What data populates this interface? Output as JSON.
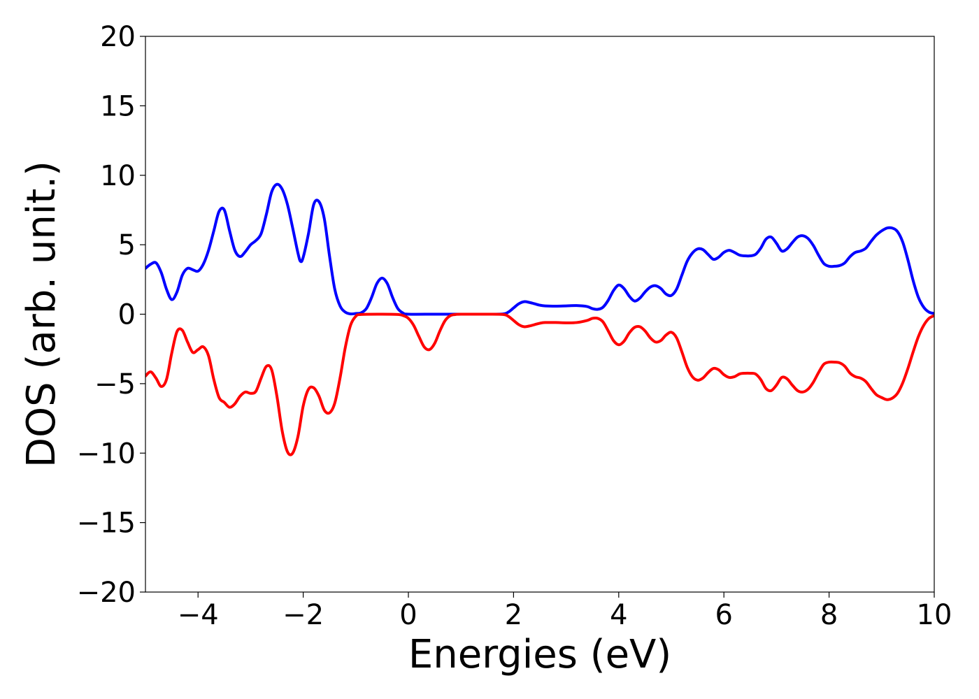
{
  "chart_data": {
    "type": "line",
    "title": "",
    "xlabel": "Energies (eV)",
    "ylabel": "DOS (arb. unit.)",
    "xlim": [
      -5,
      10
    ],
    "ylim": [
      -20,
      20
    ],
    "grid": false,
    "x_ticks": [
      {
        "value": -4,
        "label": "−4"
      },
      {
        "value": -2,
        "label": "−2"
      },
      {
        "value": 0,
        "label": "0"
      },
      {
        "value": 2,
        "label": "2"
      },
      {
        "value": 4,
        "label": "4"
      },
      {
        "value": 6,
        "label": "6"
      },
      {
        "value": 8,
        "label": "8"
      },
      {
        "value": 10,
        "label": "10"
      }
    ],
    "y_ticks": [
      {
        "value": -20,
        "label": "−20"
      },
      {
        "value": -15,
        "label": "−15"
      },
      {
        "value": -10,
        "label": "−10"
      },
      {
        "value": -5,
        "label": "−5"
      },
      {
        "value": 0,
        "label": "0"
      },
      {
        "value": 5,
        "label": "5"
      },
      {
        "value": 10,
        "label": "10"
      },
      {
        "value": 15,
        "label": "15"
      },
      {
        "value": 20,
        "label": "20"
      }
    ],
    "series": [
      {
        "color": "#0000ff",
        "points": [
          [
            -5.0,
            3.3
          ],
          [
            -4.9,
            3.6
          ],
          [
            -4.8,
            3.7
          ],
          [
            -4.7,
            3.0
          ],
          [
            -4.6,
            1.8
          ],
          [
            -4.5,
            1.05
          ],
          [
            -4.4,
            1.6
          ],
          [
            -4.3,
            2.8
          ],
          [
            -4.2,
            3.3
          ],
          [
            -4.1,
            3.2
          ],
          [
            -4.0,
            3.1
          ],
          [
            -3.9,
            3.6
          ],
          [
            -3.8,
            4.6
          ],
          [
            -3.7,
            6.0
          ],
          [
            -3.6,
            7.4
          ],
          [
            -3.5,
            7.5
          ],
          [
            -3.4,
            6.0
          ],
          [
            -3.3,
            4.6
          ],
          [
            -3.2,
            4.15
          ],
          [
            -3.1,
            4.5
          ],
          [
            -3.0,
            5.0
          ],
          [
            -2.9,
            5.3
          ],
          [
            -2.8,
            5.8
          ],
          [
            -2.7,
            7.2
          ],
          [
            -2.6,
            8.8
          ],
          [
            -2.5,
            9.35
          ],
          [
            -2.4,
            9.0
          ],
          [
            -2.3,
            7.9
          ],
          [
            -2.2,
            6.2
          ],
          [
            -2.1,
            4.4
          ],
          [
            -2.05,
            3.8
          ],
          [
            -2.0,
            4.1
          ],
          [
            -1.9,
            5.8
          ],
          [
            -1.8,
            7.9
          ],
          [
            -1.7,
            8.1
          ],
          [
            -1.6,
            6.9
          ],
          [
            -1.5,
            4.2
          ],
          [
            -1.4,
            1.8
          ],
          [
            -1.3,
            0.6
          ],
          [
            -1.2,
            0.15
          ],
          [
            -1.1,
            0.02
          ],
          [
            -1.0,
            0.05
          ],
          [
            -0.9,
            0.1
          ],
          [
            -0.8,
            0.4
          ],
          [
            -0.7,
            1.2
          ],
          [
            -0.6,
            2.2
          ],
          [
            -0.5,
            2.6
          ],
          [
            -0.4,
            2.2
          ],
          [
            -0.3,
            1.2
          ],
          [
            -0.2,
            0.4
          ],
          [
            -0.1,
            0.08
          ],
          [
            0.0,
            0.0
          ],
          [
            0.5,
            0.0
          ],
          [
            1.0,
            0.0
          ],
          [
            1.5,
            0.0
          ],
          [
            1.8,
            0.02
          ],
          [
            1.9,
            0.15
          ],
          [
            2.0,
            0.45
          ],
          [
            2.1,
            0.75
          ],
          [
            2.2,
            0.9
          ],
          [
            2.3,
            0.85
          ],
          [
            2.4,
            0.75
          ],
          [
            2.5,
            0.65
          ],
          [
            2.6,
            0.6
          ],
          [
            2.8,
            0.58
          ],
          [
            3.0,
            0.6
          ],
          [
            3.2,
            0.62
          ],
          [
            3.4,
            0.55
          ],
          [
            3.5,
            0.4
          ],
          [
            3.6,
            0.35
          ],
          [
            3.7,
            0.5
          ],
          [
            3.8,
            1.0
          ],
          [
            3.9,
            1.7
          ],
          [
            4.0,
            2.1
          ],
          [
            4.1,
            1.85
          ],
          [
            4.2,
            1.3
          ],
          [
            4.3,
            0.95
          ],
          [
            4.4,
            1.15
          ],
          [
            4.5,
            1.6
          ],
          [
            4.6,
            1.95
          ],
          [
            4.7,
            2.05
          ],
          [
            4.8,
            1.85
          ],
          [
            4.9,
            1.45
          ],
          [
            5.0,
            1.35
          ],
          [
            5.1,
            1.8
          ],
          [
            5.2,
            2.8
          ],
          [
            5.3,
            3.8
          ],
          [
            5.4,
            4.4
          ],
          [
            5.5,
            4.7
          ],
          [
            5.6,
            4.65
          ],
          [
            5.7,
            4.3
          ],
          [
            5.8,
            3.95
          ],
          [
            5.9,
            4.1
          ],
          [
            6.0,
            4.45
          ],
          [
            6.1,
            4.6
          ],
          [
            6.2,
            4.45
          ],
          [
            6.3,
            4.25
          ],
          [
            6.4,
            4.2
          ],
          [
            6.5,
            4.2
          ],
          [
            6.6,
            4.3
          ],
          [
            6.7,
            4.75
          ],
          [
            6.8,
            5.4
          ],
          [
            6.9,
            5.55
          ],
          [
            7.0,
            5.1
          ],
          [
            7.1,
            4.55
          ],
          [
            7.2,
            4.7
          ],
          [
            7.3,
            5.15
          ],
          [
            7.4,
            5.55
          ],
          [
            7.5,
            5.65
          ],
          [
            7.6,
            5.45
          ],
          [
            7.7,
            4.95
          ],
          [
            7.8,
            4.25
          ],
          [
            7.9,
            3.65
          ],
          [
            8.0,
            3.45
          ],
          [
            8.1,
            3.45
          ],
          [
            8.2,
            3.5
          ],
          [
            8.3,
            3.7
          ],
          [
            8.4,
            4.15
          ],
          [
            8.5,
            4.45
          ],
          [
            8.6,
            4.55
          ],
          [
            8.7,
            4.75
          ],
          [
            8.8,
            5.25
          ],
          [
            8.9,
            5.7
          ],
          [
            9.0,
            6.0
          ],
          [
            9.1,
            6.2
          ],
          [
            9.2,
            6.2
          ],
          [
            9.3,
            5.95
          ],
          [
            9.4,
            5.2
          ],
          [
            9.5,
            3.9
          ],
          [
            9.6,
            2.4
          ],
          [
            9.7,
            1.2
          ],
          [
            9.8,
            0.5
          ],
          [
            9.9,
            0.15
          ],
          [
            10.0,
            0.05
          ]
        ]
      },
      {
        "color": "#ff0000",
        "points": [
          [
            -5.0,
            -4.45
          ],
          [
            -4.9,
            -4.15
          ],
          [
            -4.8,
            -4.6
          ],
          [
            -4.7,
            -5.2
          ],
          [
            -4.6,
            -4.7
          ],
          [
            -4.5,
            -2.8
          ],
          [
            -4.4,
            -1.25
          ],
          [
            -4.3,
            -1.15
          ],
          [
            -4.2,
            -2.0
          ],
          [
            -4.1,
            -2.75
          ],
          [
            -4.0,
            -2.55
          ],
          [
            -3.9,
            -2.35
          ],
          [
            -3.8,
            -3.0
          ],
          [
            -3.7,
            -4.7
          ],
          [
            -3.6,
            -6.0
          ],
          [
            -3.5,
            -6.35
          ],
          [
            -3.4,
            -6.7
          ],
          [
            -3.3,
            -6.45
          ],
          [
            -3.2,
            -5.9
          ],
          [
            -3.1,
            -5.6
          ],
          [
            -3.0,
            -5.7
          ],
          [
            -2.9,
            -5.55
          ],
          [
            -2.8,
            -4.6
          ],
          [
            -2.7,
            -3.75
          ],
          [
            -2.6,
            -4.0
          ],
          [
            -2.5,
            -5.9
          ],
          [
            -2.4,
            -8.4
          ],
          [
            -2.3,
            -9.9
          ],
          [
            -2.2,
            -10.0
          ],
          [
            -2.1,
            -8.8
          ],
          [
            -2.0,
            -6.6
          ],
          [
            -1.9,
            -5.4
          ],
          [
            -1.8,
            -5.3
          ],
          [
            -1.7,
            -5.9
          ],
          [
            -1.6,
            -6.9
          ],
          [
            -1.5,
            -7.1
          ],
          [
            -1.4,
            -6.4
          ],
          [
            -1.3,
            -4.6
          ],
          [
            -1.2,
            -2.4
          ],
          [
            -1.1,
            -0.8
          ],
          [
            -1.0,
            -0.15
          ],
          [
            -0.9,
            -0.02
          ],
          [
            -0.5,
            0.0
          ],
          [
            -0.2,
            -0.02
          ],
          [
            -0.1,
            -0.1
          ],
          [
            0.0,
            -0.3
          ],
          [
            0.1,
            -0.8
          ],
          [
            0.2,
            -1.6
          ],
          [
            0.3,
            -2.35
          ],
          [
            0.4,
            -2.55
          ],
          [
            0.5,
            -2.1
          ],
          [
            0.6,
            -1.2
          ],
          [
            0.7,
            -0.45
          ],
          [
            0.8,
            -0.1
          ],
          [
            0.9,
            -0.02
          ],
          [
            1.0,
            0.0
          ],
          [
            1.5,
            0.0
          ],
          [
            1.8,
            -0.02
          ],
          [
            1.9,
            -0.15
          ],
          [
            2.0,
            -0.45
          ],
          [
            2.1,
            -0.75
          ],
          [
            2.2,
            -0.9
          ],
          [
            2.3,
            -0.85
          ],
          [
            2.4,
            -0.75
          ],
          [
            2.5,
            -0.65
          ],
          [
            2.6,
            -0.6
          ],
          [
            2.8,
            -0.6
          ],
          [
            3.0,
            -0.62
          ],
          [
            3.2,
            -0.6
          ],
          [
            3.4,
            -0.45
          ],
          [
            3.5,
            -0.3
          ],
          [
            3.6,
            -0.3
          ],
          [
            3.7,
            -0.55
          ],
          [
            3.8,
            -1.2
          ],
          [
            3.9,
            -1.9
          ],
          [
            4.0,
            -2.2
          ],
          [
            4.1,
            -1.95
          ],
          [
            4.2,
            -1.35
          ],
          [
            4.3,
            -0.95
          ],
          [
            4.4,
            -0.9
          ],
          [
            4.5,
            -1.2
          ],
          [
            4.6,
            -1.7
          ],
          [
            4.7,
            -2.0
          ],
          [
            4.8,
            -1.9
          ],
          [
            4.9,
            -1.5
          ],
          [
            5.0,
            -1.3
          ],
          [
            5.1,
            -1.7
          ],
          [
            5.2,
            -2.7
          ],
          [
            5.3,
            -3.8
          ],
          [
            5.4,
            -4.5
          ],
          [
            5.5,
            -4.75
          ],
          [
            5.6,
            -4.6
          ],
          [
            5.7,
            -4.2
          ],
          [
            5.8,
            -3.9
          ],
          [
            5.9,
            -4.0
          ],
          [
            6.0,
            -4.35
          ],
          [
            6.1,
            -4.55
          ],
          [
            6.2,
            -4.5
          ],
          [
            6.3,
            -4.3
          ],
          [
            6.4,
            -4.25
          ],
          [
            6.5,
            -4.25
          ],
          [
            6.6,
            -4.3
          ],
          [
            6.7,
            -4.7
          ],
          [
            6.8,
            -5.35
          ],
          [
            6.9,
            -5.5
          ],
          [
            7.0,
            -5.1
          ],
          [
            7.1,
            -4.55
          ],
          [
            7.2,
            -4.65
          ],
          [
            7.3,
            -5.1
          ],
          [
            7.4,
            -5.5
          ],
          [
            7.5,
            -5.6
          ],
          [
            7.6,
            -5.4
          ],
          [
            7.7,
            -4.9
          ],
          [
            7.8,
            -4.2
          ],
          [
            7.9,
            -3.6
          ],
          [
            8.0,
            -3.45
          ],
          [
            8.1,
            -3.45
          ],
          [
            8.2,
            -3.5
          ],
          [
            8.3,
            -3.75
          ],
          [
            8.4,
            -4.25
          ],
          [
            8.5,
            -4.5
          ],
          [
            8.6,
            -4.6
          ],
          [
            8.7,
            -4.85
          ],
          [
            8.8,
            -5.35
          ],
          [
            8.9,
            -5.8
          ],
          [
            9.0,
            -6.0
          ],
          [
            9.1,
            -6.15
          ],
          [
            9.2,
            -6.05
          ],
          [
            9.3,
            -5.7
          ],
          [
            9.4,
            -4.95
          ],
          [
            9.5,
            -3.9
          ],
          [
            9.6,
            -2.7
          ],
          [
            9.7,
            -1.6
          ],
          [
            9.8,
            -0.8
          ],
          [
            9.9,
            -0.3
          ],
          [
            10.0,
            -0.1
          ]
        ]
      }
    ]
  }
}
